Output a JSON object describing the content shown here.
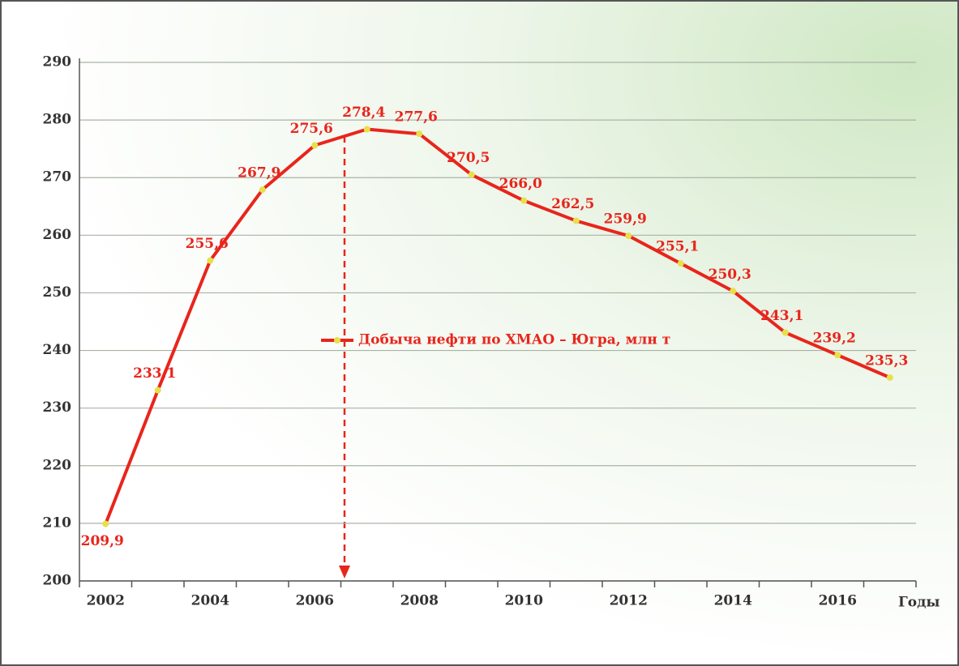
{
  "chart_data": {
    "type": "line",
    "categories": [
      "2002",
      null,
      "2004",
      null,
      "2006",
      null,
      "2008",
      null,
      "2010",
      null,
      "2012",
      null,
      "2014",
      null,
      "2016",
      null
    ],
    "xlabel": "Годы",
    "series": [
      {
        "name": "Добыча нефти по ХМАО – Югра, млн т",
        "color": "#e8251c",
        "marker_color": "#e8e04a",
        "values": [
          209.9,
          233.1,
          255.6,
          267.9,
          275.6,
          278.4,
          277.6,
          270.5,
          266.0,
          262.5,
          259.9,
          255.1,
          250.3,
          243.1,
          239.2,
          235.3
        ],
        "value_labels": [
          "209,9",
          "233,1",
          "255,6",
          "267,9",
          "275,6",
          "278,4",
          "277,6",
          "270,5",
          "266,0",
          "262,5",
          "259,9",
          "255,1",
          "250,3",
          "243,1",
          "239,2",
          "235,3"
        ]
      }
    ],
    "ylim": [
      200,
      290
    ],
    "yticks": [
      200,
      210,
      220,
      230,
      240,
      250,
      260,
      270,
      280,
      290
    ],
    "grid": true
  }
}
